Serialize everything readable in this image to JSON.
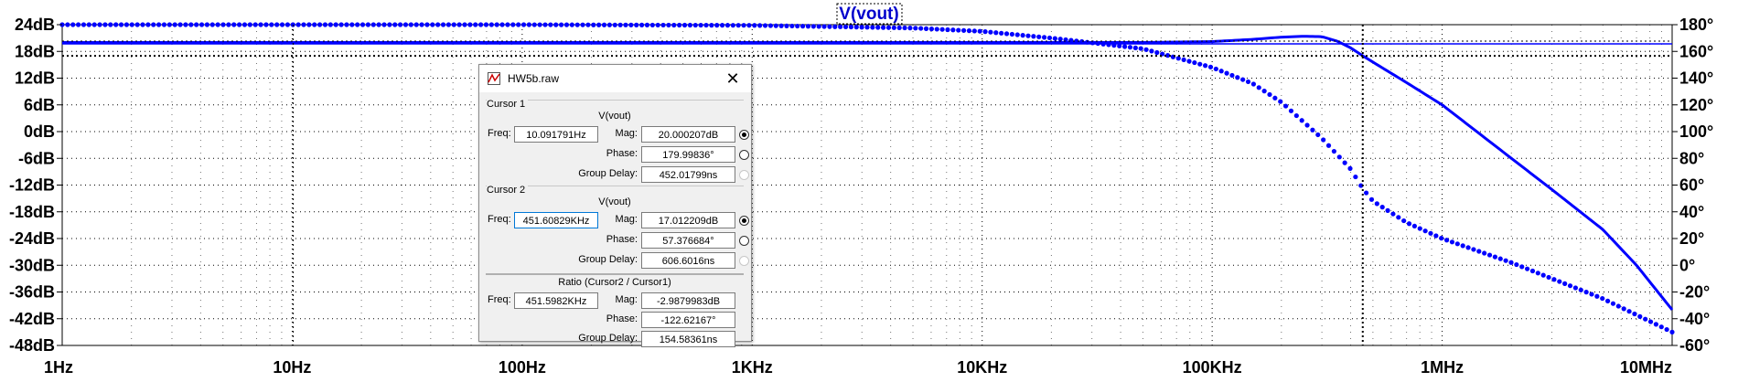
{
  "chart_data": {
    "type": "line",
    "title": "V(vout)",
    "x_scale": "log",
    "xlim": [
      1,
      10000000
    ],
    "x_tick_labels": [
      "1Hz",
      "10Hz",
      "100Hz",
      "1KHz",
      "10KHz",
      "100KHz",
      "1MHz",
      "10MHz"
    ],
    "y_left": {
      "label": "dB",
      "range": [
        -48,
        24
      ],
      "tick_labels": [
        "24dB",
        "18dB",
        "12dB",
        "6dB",
        "0dB",
        "-6dB",
        "-12dB",
        "-18dB",
        "-24dB",
        "-30dB",
        "-36dB",
        "-42dB",
        "-48dB"
      ]
    },
    "y_right": {
      "label": "degrees",
      "range": [
        -60,
        180
      ],
      "tick_labels": [
        "180°",
        "160°",
        "140°",
        "120°",
        "100°",
        "80°",
        "60°",
        "40°",
        "20°",
        "0°",
        "-20°",
        "-40°",
        "-60°"
      ]
    },
    "grid": true,
    "series": [
      {
        "name": "V(vout)",
        "style": "solid",
        "axis": "left",
        "color": "#0000ff",
        "x": [
          1,
          10,
          100,
          1000,
          10000,
          50000,
          100000,
          150000,
          200000,
          250000,
          300000,
          350000,
          400000,
          451598,
          500000,
          700000,
          1000000,
          2000000,
          3000000,
          5000000,
          7000000,
          10000000
        ],
        "y": [
          20.0,
          20.0,
          20.0,
          20.0,
          20.0,
          20.0,
          20.2,
          20.7,
          21.2,
          21.4,
          21.3,
          20.3,
          18.8,
          17.01,
          15.6,
          11.0,
          6.0,
          -6.0,
          -13.0,
          -22.0,
          -30.0,
          -40.0
        ]
      },
      {
        "name": "V(vout) phase",
        "style": "dotted",
        "axis": "right",
        "color": "#0000ff",
        "x": [
          1,
          10,
          100,
          1000,
          5000,
          10000,
          20000,
          50000,
          100000,
          150000,
          200000,
          300000,
          400000,
          451598,
          500000,
          700000,
          1000000,
          2000000,
          5000000,
          10000000
        ],
        "y": [
          180.0,
          180.0,
          180.0,
          179.5,
          177.5,
          175.0,
          170.0,
          162.0,
          148.0,
          136.0,
          122.0,
          95.0,
          72.0,
          57.38,
          48.0,
          32.0,
          20.0,
          2.0,
          -25.0,
          -50.0
        ]
      }
    ],
    "cursors": [
      {
        "x": 10.091791,
        "y": 20.000207
      },
      {
        "x": 451608.29,
        "y": 17.012209
      }
    ]
  },
  "dialog": {
    "title": "HW5b.raw",
    "close_glyph": "✕",
    "cursor1": {
      "group": "Cursor 1",
      "trace": "V(vout)",
      "freq_label": "Freq:",
      "freq": "10.091791Hz",
      "mag_label": "Mag:",
      "mag": "20.000207dB",
      "phase_label": "Phase:",
      "phase": "179.99836°",
      "gd_label": "Group Delay:",
      "gd": "452.01799ns"
    },
    "cursor2": {
      "group": "Cursor 2",
      "trace": "V(vout)",
      "freq_label": "Freq:",
      "freq": "451.60829KHz",
      "mag_label": "Mag:",
      "mag": "17.012209dB",
      "phase_label": "Phase:",
      "phase": "57.376684°",
      "gd_label": "Group Delay:",
      "gd": "606.6016ns"
    },
    "ratio": {
      "group": "Ratio (Cursor2 / Cursor1)",
      "freq_label": "Freq:",
      "freq": "451.5982KHz",
      "mag_label": "Mag:",
      "mag": "-2.9879983dB",
      "phase_label": "Phase:",
      "phase": "-122.62167°",
      "gd_label": "Group Delay:",
      "gd": "154.58361ns"
    }
  }
}
